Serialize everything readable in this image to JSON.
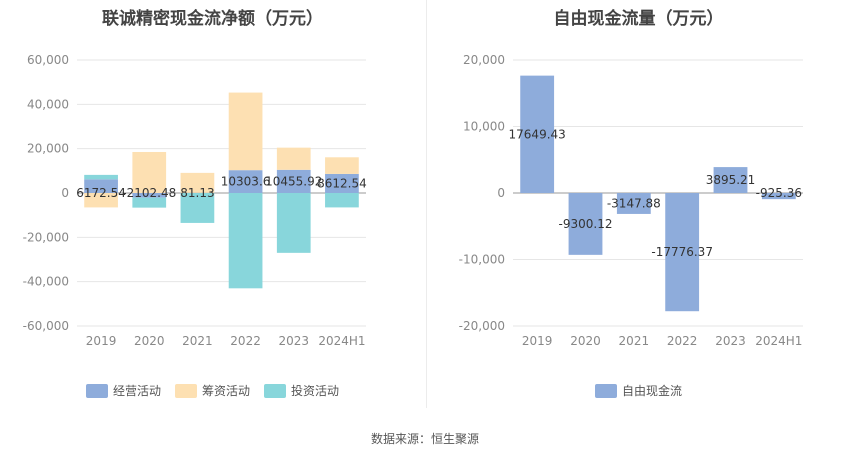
{
  "source": "数据来源：恒生聚源",
  "chart_data": [
    {
      "type": "bar",
      "stacked": true,
      "title": "联诚精密现金流净额（万元）",
      "categories": [
        "2019",
        "2020",
        "2021",
        "2022",
        "2023",
        "2024H1"
      ],
      "ylim": [
        -60000,
        60000
      ],
      "yticks": [
        -60000,
        -40000,
        -20000,
        0,
        20000,
        40000,
        60000
      ],
      "ytick_labels": [
        "-60,000",
        "-40,000",
        "-20,000",
        "0",
        "20,000",
        "40,000",
        "60,000"
      ],
      "grid": true,
      "legend_position": "bottom",
      "series": [
        {
          "name": "经营活动",
          "color": "#8eacdb",
          "values": [
            6172.54,
            -2102.48,
            81.13,
            10303.6,
            10455.92,
            8612.54
          ],
          "labels": [
            "6172.54",
            "-2102.48",
            "81.13",
            "10303.6",
            "10455.92",
            "8612.54"
          ]
        },
        {
          "name": "筹资活动",
          "color": "#fde0b2",
          "values": [
            -6500,
            18500,
            9000,
            35000,
            10000,
            7500
          ]
        },
        {
          "name": "投资活动",
          "color": "#88d6db",
          "values": [
            2000,
            -4500,
            -13500,
            -43000,
            -27000,
            -6500
          ]
        }
      ]
    },
    {
      "type": "bar",
      "title": "自由现金流量（万元）",
      "categories": [
        "2019",
        "2020",
        "2021",
        "2022",
        "2023",
        "2024H1"
      ],
      "ylim": [
        -20000,
        20000
      ],
      "yticks": [
        -20000,
        -10000,
        0,
        10000,
        20000
      ],
      "ytick_labels": [
        "-20,000",
        "-10,000",
        "0",
        "10,000",
        "20,000"
      ],
      "grid": true,
      "legend_position": "bottom",
      "series": [
        {
          "name": "自由现金流",
          "color": "#8eacdb",
          "values": [
            17649.43,
            -9300.12,
            -3147.88,
            -17776.37,
            3895.21,
            -925.36
          ],
          "labels": [
            "17649.43",
            "-9300.12",
            "-3147.88",
            "-17776.37",
            "3895.21",
            "-925.36"
          ]
        }
      ]
    }
  ]
}
